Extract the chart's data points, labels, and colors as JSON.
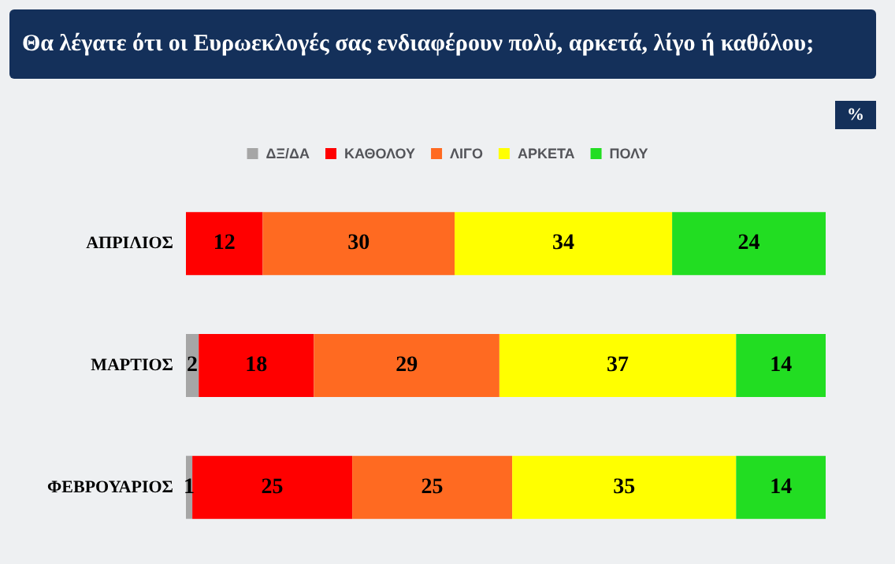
{
  "chart_data": {
    "type": "bar",
    "title": "Θα λέγατε ότι οι Ευρωεκλογές σας ενδιαφέρουν πολύ, αρκετά, λίγο ή καθόλου;",
    "annotations": [
      "%"
    ],
    "orientation": "horizontal",
    "stacked": true,
    "data_labels": true,
    "legend": "top",
    "categories": [
      "ΑΠΡΙΛΙΟΣ",
      "ΜΑΡΤΙΟΣ",
      "ΦΕΒΡΟΥΑΡΙΟΣ"
    ],
    "series": [
      {
        "name": "ΔΞ/ΔΑ",
        "color": "#a6a6a6",
        "values": [
          0,
          2,
          1
        ],
        "value_labels": [
          null,
          "2",
          "1"
        ]
      },
      {
        "name": "ΚΑΘΟΛΟΥ",
        "color": "#ff0000",
        "values": [
          12,
          18,
          25
        ]
      },
      {
        "name": "ΛΙΓΟ",
        "color": "#ff6a21",
        "values": [
          30,
          29,
          25
        ]
      },
      {
        "name": "ΑΡΚΕΤΑ",
        "color": "#ffff00",
        "values": [
          34,
          37,
          35
        ]
      },
      {
        "name": "ΠΟΛΥ",
        "color": "#22dd22",
        "values": [
          24,
          14,
          14
        ]
      }
    ]
  }
}
